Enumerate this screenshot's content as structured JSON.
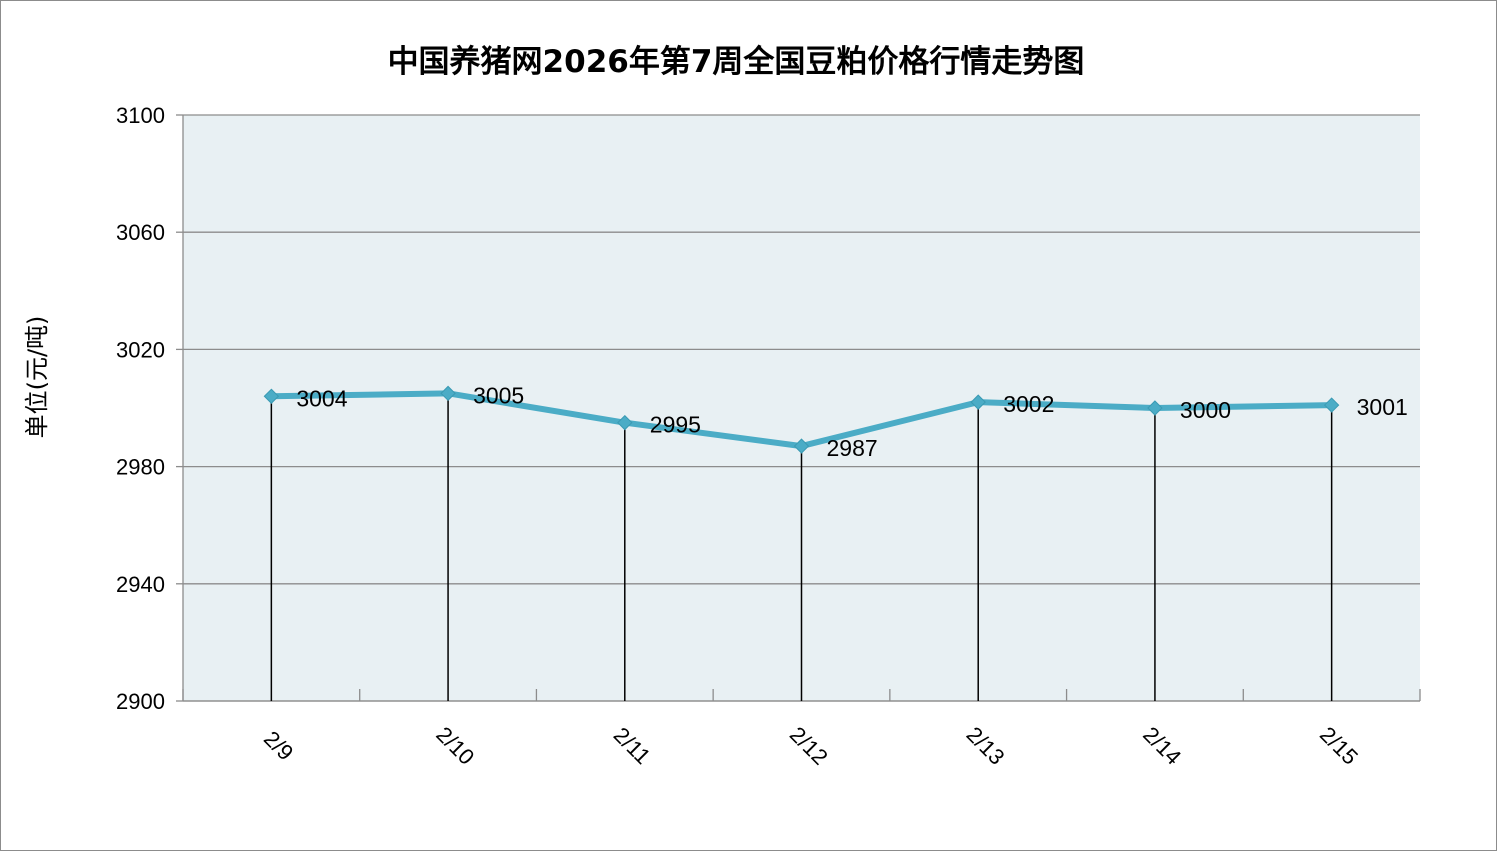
{
  "chart_data": {
    "type": "line",
    "title": "中国养猪网2026年第7周全国豆粕价格行情走势图",
    "xlabel": "",
    "ylabel": "单位(元/吨)",
    "categories": [
      "2/9",
      "2/10",
      "2/11",
      "2/12",
      "2/13",
      "2/14",
      "2/15"
    ],
    "series": [
      {
        "values": [
          3004,
          3005,
          2995,
          2987,
          3002,
          3000,
          3001
        ]
      }
    ],
    "ylim": [
      2900,
      3100
    ],
    "yticks": [
      2900,
      2940,
      2980,
      3020,
      3060,
      3100
    ],
    "grid": true,
    "colors": {
      "line": "#4bacc6",
      "plot_bg": "#e8f0f3",
      "grid": "#8c8c8c",
      "drop": "#000000"
    }
  }
}
